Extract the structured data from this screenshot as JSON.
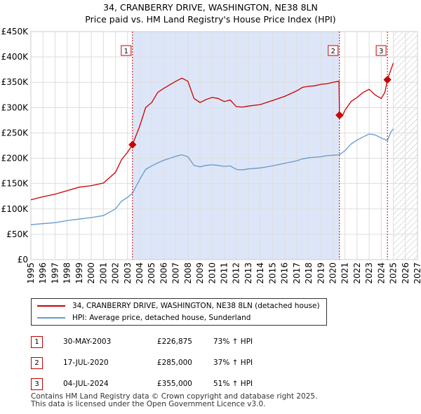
{
  "title_line1": "34, CRANBERRY DRIVE, WASHINGTON, NE38 8LN",
  "title_line2": "Price paid vs. HM Land Registry's House Price Index (HPI)",
  "colors": {
    "property_line": "#cc0000",
    "hpi_line": "#6699cc",
    "shade": "#dde6f8",
    "grid": "#dddddd",
    "marker": "#cc0000"
  },
  "chart_data": {
    "type": "line",
    "xlim": [
      1995,
      2027
    ],
    "ylim": [
      0,
      450000
    ],
    "x_ticks": [
      1995,
      1996,
      1997,
      1998,
      1999,
      2000,
      2001,
      2002,
      2003,
      2004,
      2005,
      2006,
      2007,
      2008,
      2009,
      2010,
      2011,
      2012,
      2013,
      2014,
      2015,
      2016,
      2017,
      2018,
      2019,
      2020,
      2021,
      2022,
      2023,
      2024,
      2025,
      2026,
      2027
    ],
    "y_ticks": [
      0,
      50000,
      100000,
      150000,
      200000,
      250000,
      300000,
      350000,
      400000,
      450000
    ],
    "y_tick_labels": [
      "£0",
      "£50K",
      "£100K",
      "£150K",
      "£200K",
      "£250K",
      "£300K",
      "£350K",
      "£400K",
      "£450K"
    ],
    "shaded_span": [
      2003.41,
      2020.54
    ],
    "future_hatch_from": 2025.0,
    "series": [
      {
        "name": "34, CRANBERRY DRIVE, WASHINGTON, NE38 8LN (detached house)",
        "x": [
          1995.0,
          1996.0,
          1997.0,
          1998.0,
          1999.0,
          2000.0,
          2001.0,
          2002.0,
          2002.5,
          2003.0,
          2003.41,
          2004.0,
          2004.5,
          2005.0,
          2005.5,
          2006.0,
          2006.5,
          2007.0,
          2007.5,
          2008.0,
          2008.5,
          2009.0,
          2009.5,
          2010.0,
          2010.5,
          2011.0,
          2011.5,
          2012.0,
          2012.5,
          2013.0,
          2014.0,
          2015.0,
          2016.0,
          2017.0,
          2017.5,
          2018.0,
          2018.5,
          2019.0,
          2019.5,
          2020.0,
          2020.5,
          2020.54,
          2020.62,
          2020.8,
          2021.0,
          2021.5,
          2022.0,
          2022.5,
          2023.0,
          2023.5,
          2024.0,
          2024.3,
          2024.51,
          2024.8,
          2025.0
        ],
        "values": [
          118000,
          124000,
          129000,
          136000,
          143000,
          146000,
          151000,
          172000,
          197000,
          212000,
          226875,
          263000,
          300000,
          310000,
          330000,
          338000,
          345000,
          352000,
          358000,
          352000,
          318000,
          310000,
          316000,
          320000,
          318000,
          312000,
          315000,
          302000,
          301000,
          303000,
          306000,
          314000,
          322000,
          333000,
          340000,
          342000,
          343000,
          346000,
          347000,
          350000,
          352000,
          285000,
          280000,
          284000,
          295000,
          312000,
          320000,
          330000,
          336000,
          325000,
          318000,
          330000,
          355000,
          375000,
          388000
        ]
      },
      {
        "name": "HPI: Average price, detached house, Sunderland",
        "x": [
          1995.0,
          1996.0,
          1997.0,
          1998.0,
          1999.0,
          2000.0,
          2001.0,
          2002.0,
          2002.5,
          2003.0,
          2003.41,
          2004.0,
          2004.5,
          2005.0,
          2005.5,
          2006.0,
          2006.5,
          2007.0,
          2007.5,
          2008.0,
          2008.5,
          2009.0,
          2009.5,
          2010.0,
          2010.5,
          2011.0,
          2011.5,
          2012.0,
          2012.5,
          2013.0,
          2014.0,
          2015.0,
          2016.0,
          2017.0,
          2017.5,
          2018.0,
          2018.5,
          2019.0,
          2019.5,
          2020.0,
          2020.54,
          2021.0,
          2021.5,
          2022.0,
          2022.5,
          2023.0,
          2023.5,
          2024.0,
          2024.51,
          2024.8,
          2025.0
        ],
        "values": [
          69000,
          71000,
          73000,
          77000,
          80000,
          83000,
          87000,
          100000,
          115000,
          123000,
          131000,
          158000,
          178000,
          185000,
          191000,
          196000,
          200000,
          204000,
          207000,
          203000,
          186000,
          183000,
          186000,
          187000,
          186000,
          184000,
          185000,
          178000,
          177000,
          179000,
          181000,
          185000,
          190000,
          195000,
          199000,
          201000,
          202000,
          203000,
          205000,
          206000,
          207000,
          215000,
          228000,
          236000,
          242000,
          248000,
          246000,
          240000,
          235000,
          252000,
          258000
        ]
      }
    ],
    "markers": [
      {
        "label": "1",
        "x": 2003.41,
        "y": 226875
      },
      {
        "label": "2",
        "x": 2020.54,
        "y": 285000
      },
      {
        "label": "3",
        "x": 2024.51,
        "y": 355000
      }
    ]
  },
  "legend": {
    "property": "34, CRANBERRY DRIVE, WASHINGTON, NE38 8LN (detached house)",
    "hpi": "HPI: Average price, detached house, Sunderland"
  },
  "transactions": [
    {
      "num": "1",
      "date": "30-MAY-2003",
      "price": "£226,875",
      "hpi": "73% ↑ HPI"
    },
    {
      "num": "2",
      "date": "17-JUL-2020",
      "price": "£285,000",
      "hpi": "37% ↑ HPI"
    },
    {
      "num": "3",
      "date": "04-JUL-2024",
      "price": "£355,000",
      "hpi": "51% ↑ HPI"
    }
  ],
  "footer_line1": "Contains HM Land Registry data © Crown copyright and database right 2025.",
  "footer_line2": "This data is licensed under the Open Government Licence v3.0."
}
